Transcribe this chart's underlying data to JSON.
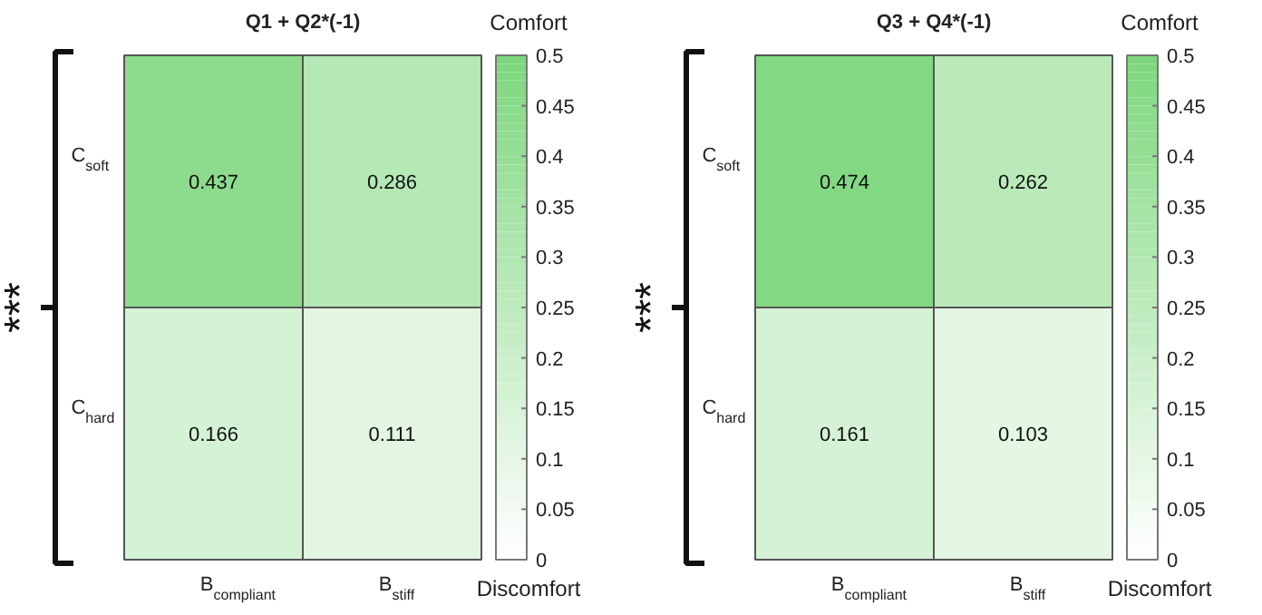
{
  "chart_data": [
    {
      "type": "heatmap",
      "title": "Q1 + Q2*(-1)",
      "categories": [
        "B$_{compliant}$",
        "B$_{stiff}$"
      ],
      "y_categories": [
        "C$_{soft}$",
        "C$_{hard}$"
      ],
      "cells": [
        [
          0.437,
          0.286
        ],
        [
          0.166,
          0.111
        ]
      ],
      "data_labels": true,
      "clim": [
        0,
        0.5
      ],
      "cticks": [
        0,
        0.05,
        0.1,
        0.15,
        0.2,
        0.25,
        0.3,
        0.35,
        0.4,
        0.45,
        0.5
      ],
      "annotations": [
        "Comfort",
        "Discomfort",
        "***"
      ]
    },
    {
      "type": "heatmap",
      "title": "Q3 + Q4*(-1)",
      "categories": [
        "B$_{compliant}$",
        "B$_{stiff}$"
      ],
      "y_categories": [
        "C$_{soft}$",
        "C$_{hard}$"
      ],
      "cells": [
        [
          0.474,
          0.262
        ],
        [
          0.161,
          0.103
        ]
      ],
      "data_labels": true,
      "clim": [
        0,
        0.5
      ],
      "cticks": [
        0,
        0.05,
        0.1,
        0.15,
        0.2,
        0.25,
        0.3,
        0.35,
        0.4,
        0.45,
        0.5
      ],
      "annotations": [
        "Comfort",
        "Discomfort",
        "***"
      ]
    }
  ]
}
